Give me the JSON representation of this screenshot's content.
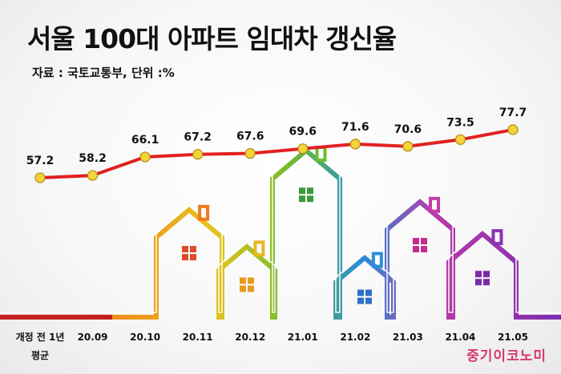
{
  "header": {
    "title": "서울 100대 아파트 임대차 갱신율",
    "source": "자료 : 국토교통부, 단위  :%"
  },
  "brand": {
    "logo_text": "중기이코노미"
  },
  "colors": {
    "line": "#e12020",
    "point_fill": "#f6d23b",
    "point_stroke": "#b08a10",
    "baseline": "#c2211f"
  },
  "chart_data": {
    "type": "line",
    "categories": [
      "개정 전 1년\n평균",
      "20.09",
      "20.10",
      "20.11",
      "20.12",
      "21.01",
      "21.02",
      "21.03",
      "21.04",
      "21.05"
    ],
    "values": [
      57.2,
      58.2,
      66.1,
      67.2,
      67.6,
      69.6,
      71.6,
      70.6,
      73.5,
      77.7
    ],
    "title": "서울 100대 아파트 임대차 갱신율",
    "subtitle": "자료 : 국토교통부, 단위  :%",
    "xlabel": "",
    "ylabel": "",
    "grid": false,
    "legend": false
  }
}
